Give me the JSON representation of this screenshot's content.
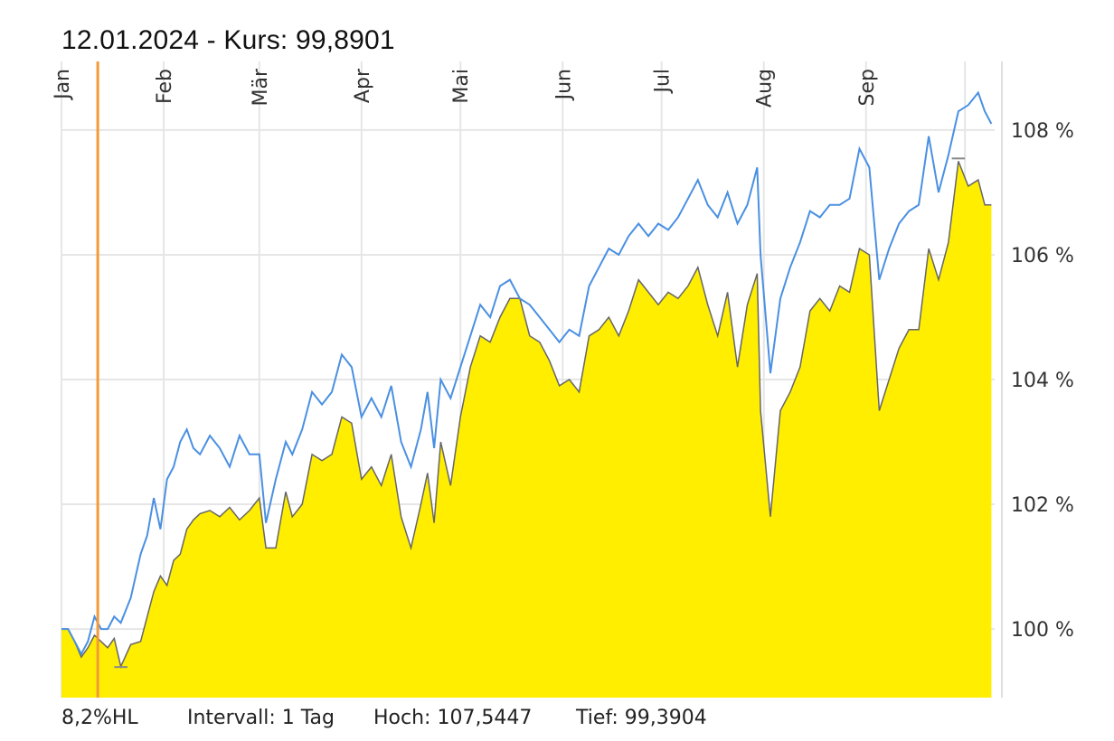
{
  "header": {
    "title": "12.01.2024  -  Kurs: 99,8901"
  },
  "footer": {
    "label": "8,2%HL",
    "interval": "Intervall: 1 Tag",
    "high": "Hoch: 107,5447",
    "low": "Tief: 99,3904"
  },
  "colors": {
    "area_fill": "#ffee00",
    "area_line": "#666666",
    "compare_line": "#4a90e2",
    "marker": "#f39a3a",
    "grid": "#e6e6e6"
  },
  "chart_data": {
    "type": "area",
    "x_ticks": [
      "Jan",
      "Feb",
      "Mär",
      "Apr",
      "Mai",
      "Jun",
      "Jul",
      "Aug",
      "Sep"
    ],
    "y_ticks": [
      "100 %",
      "102 %",
      "104 %",
      "106 %",
      "108 %"
    ],
    "ylim": [
      98.9,
      109.1
    ],
    "xlim": [
      "2024-01-01",
      "2024-10-10"
    ],
    "grid": true,
    "marker_date": "2024-01-12",
    "high_value": 107.5447,
    "low_value": 99.3904,
    "series": [
      {
        "style": "area",
        "points": [
          [
            "2024-01-01",
            100
          ],
          [
            "2024-01-03",
            100.0
          ],
          [
            "2024-01-05",
            99.8
          ],
          [
            "2024-01-07",
            99.55
          ],
          [
            "2024-01-09",
            99.7
          ],
          [
            "2024-01-11",
            99.9
          ],
          [
            "2024-01-13",
            99.8
          ],
          [
            "2024-01-15",
            99.7
          ],
          [
            "2024-01-17",
            99.85
          ],
          [
            "2024-01-19",
            99.4
          ],
          [
            "2024-01-22",
            99.75
          ],
          [
            "2024-01-25",
            99.8
          ],
          [
            "2024-01-27",
            100.2
          ],
          [
            "2024-01-29",
            100.6
          ],
          [
            "2024-01-31",
            100.85
          ],
          [
            "2024-02-02",
            100.7
          ],
          [
            "2024-02-04",
            101.1
          ],
          [
            "2024-02-06",
            101.2
          ],
          [
            "2024-02-08",
            101.6
          ],
          [
            "2024-02-10",
            101.75
          ],
          [
            "2024-02-12",
            101.85
          ],
          [
            "2024-02-15",
            101.9
          ],
          [
            "2024-02-18",
            101.8
          ],
          [
            "2024-02-21",
            101.95
          ],
          [
            "2024-02-24",
            101.75
          ],
          [
            "2024-02-27",
            101.9
          ],
          [
            "2024-03-01",
            102.1
          ],
          [
            "2024-03-03",
            101.3
          ],
          [
            "2024-03-06",
            101.3
          ],
          [
            "2024-03-09",
            102.2
          ],
          [
            "2024-03-11",
            101.8
          ],
          [
            "2024-03-14",
            102.0
          ],
          [
            "2024-03-17",
            102.8
          ],
          [
            "2024-03-20",
            102.7
          ],
          [
            "2024-03-23",
            102.8
          ],
          [
            "2024-03-26",
            103.4
          ],
          [
            "2024-03-29",
            103.3
          ],
          [
            "2024-04-01",
            102.4
          ],
          [
            "2024-04-04",
            102.6
          ],
          [
            "2024-04-07",
            102.3
          ],
          [
            "2024-04-10",
            102.8
          ],
          [
            "2024-04-13",
            101.8
          ],
          [
            "2024-04-16",
            101.3
          ],
          [
            "2024-04-19",
            102.0
          ],
          [
            "2024-04-21",
            102.5
          ],
          [
            "2024-04-23",
            101.7
          ],
          [
            "2024-04-25",
            103.0
          ],
          [
            "2024-04-28",
            102.3
          ],
          [
            "2024-05-01",
            103.4
          ],
          [
            "2024-05-04",
            104.2
          ],
          [
            "2024-05-07",
            104.7
          ],
          [
            "2024-05-10",
            104.6
          ],
          [
            "2024-05-13",
            105.0
          ],
          [
            "2024-05-16",
            105.3
          ],
          [
            "2024-05-19",
            105.3
          ],
          [
            "2024-05-22",
            104.7
          ],
          [
            "2024-05-25",
            104.6
          ],
          [
            "2024-05-28",
            104.3
          ],
          [
            "2024-05-31",
            103.9
          ],
          [
            "2024-06-03",
            104.0
          ],
          [
            "2024-06-06",
            103.8
          ],
          [
            "2024-06-09",
            104.7
          ],
          [
            "2024-06-12",
            104.8
          ],
          [
            "2024-06-15",
            105.0
          ],
          [
            "2024-06-18",
            104.7
          ],
          [
            "2024-06-21",
            105.1
          ],
          [
            "2024-06-24",
            105.6
          ],
          [
            "2024-06-27",
            105.4
          ],
          [
            "2024-06-30",
            105.2
          ],
          [
            "2024-07-03",
            105.4
          ],
          [
            "2024-07-06",
            105.3
          ],
          [
            "2024-07-09",
            105.5
          ],
          [
            "2024-07-12",
            105.8
          ],
          [
            "2024-07-15",
            105.2
          ],
          [
            "2024-07-18",
            104.7
          ],
          [
            "2024-07-21",
            105.4
          ],
          [
            "2024-07-24",
            104.2
          ],
          [
            "2024-07-27",
            105.2
          ],
          [
            "2024-07-30",
            105.7
          ],
          [
            "2024-07-31",
            103.5
          ],
          [
            "2024-08-03",
            101.8
          ],
          [
            "2024-08-06",
            103.5
          ],
          [
            "2024-08-09",
            103.8
          ],
          [
            "2024-08-12",
            104.2
          ],
          [
            "2024-08-15",
            105.1
          ],
          [
            "2024-08-18",
            105.3
          ],
          [
            "2024-08-21",
            105.1
          ],
          [
            "2024-08-24",
            105.5
          ],
          [
            "2024-08-27",
            105.4
          ],
          [
            "2024-08-30",
            106.1
          ],
          [
            "2024-09-02",
            106.0
          ],
          [
            "2024-09-05",
            103.5
          ],
          [
            "2024-09-08",
            104.0
          ],
          [
            "2024-09-11",
            104.5
          ],
          [
            "2024-09-14",
            104.8
          ],
          [
            "2024-09-17",
            104.8
          ],
          [
            "2024-09-20",
            106.1
          ],
          [
            "2024-09-23",
            105.6
          ],
          [
            "2024-09-26",
            106.2
          ],
          [
            "2024-09-29",
            107.5
          ],
          [
            "2024-10-02",
            107.1
          ],
          [
            "2024-10-05",
            107.2
          ],
          [
            "2024-10-07",
            106.8
          ],
          [
            "2024-10-09",
            106.8
          ]
        ]
      },
      {
        "style": "line",
        "points": [
          [
            "2024-01-01",
            100
          ],
          [
            "2024-01-03",
            100.0
          ],
          [
            "2024-01-05",
            99.8
          ],
          [
            "2024-01-07",
            99.6
          ],
          [
            "2024-01-09",
            99.8
          ],
          [
            "2024-01-11",
            100.2
          ],
          [
            "2024-01-13",
            100.0
          ],
          [
            "2024-01-15",
            100.0
          ],
          [
            "2024-01-17",
            100.2
          ],
          [
            "2024-01-19",
            100.1
          ],
          [
            "2024-01-22",
            100.5
          ],
          [
            "2024-01-25",
            101.2
          ],
          [
            "2024-01-27",
            101.5
          ],
          [
            "2024-01-29",
            102.1
          ],
          [
            "2024-01-31",
            101.6
          ],
          [
            "2024-02-02",
            102.4
          ],
          [
            "2024-02-04",
            102.6
          ],
          [
            "2024-02-06",
            103.0
          ],
          [
            "2024-02-08",
            103.2
          ],
          [
            "2024-02-10",
            102.9
          ],
          [
            "2024-02-12",
            102.8
          ],
          [
            "2024-02-15",
            103.1
          ],
          [
            "2024-02-18",
            102.9
          ],
          [
            "2024-02-21",
            102.6
          ],
          [
            "2024-02-24",
            103.1
          ],
          [
            "2024-02-27",
            102.8
          ],
          [
            "2024-03-01",
            102.8
          ],
          [
            "2024-03-03",
            101.7
          ],
          [
            "2024-03-06",
            102.4
          ],
          [
            "2024-03-09",
            103.0
          ],
          [
            "2024-03-11",
            102.8
          ],
          [
            "2024-03-14",
            103.2
          ],
          [
            "2024-03-17",
            103.8
          ],
          [
            "2024-03-20",
            103.6
          ],
          [
            "2024-03-23",
            103.8
          ],
          [
            "2024-03-26",
            104.4
          ],
          [
            "2024-03-29",
            104.2
          ],
          [
            "2024-04-01",
            103.4
          ],
          [
            "2024-04-04",
            103.7
          ],
          [
            "2024-04-07",
            103.4
          ],
          [
            "2024-04-10",
            103.9
          ],
          [
            "2024-04-13",
            103.0
          ],
          [
            "2024-04-16",
            102.6
          ],
          [
            "2024-04-19",
            103.2
          ],
          [
            "2024-04-21",
            103.8
          ],
          [
            "2024-04-23",
            102.9
          ],
          [
            "2024-04-25",
            104.0
          ],
          [
            "2024-04-28",
            103.7
          ],
          [
            "2024-05-01",
            104.2
          ],
          [
            "2024-05-04",
            104.7
          ],
          [
            "2024-05-07",
            105.2
          ],
          [
            "2024-05-10",
            105.0
          ],
          [
            "2024-05-13",
            105.5
          ],
          [
            "2024-05-16",
            105.6
          ],
          [
            "2024-05-19",
            105.3
          ],
          [
            "2024-05-22",
            105.2
          ],
          [
            "2024-05-25",
            105.0
          ],
          [
            "2024-05-28",
            104.8
          ],
          [
            "2024-05-31",
            104.6
          ],
          [
            "2024-06-03",
            104.8
          ],
          [
            "2024-06-06",
            104.7
          ],
          [
            "2024-06-09",
            105.5
          ],
          [
            "2024-06-12",
            105.8
          ],
          [
            "2024-06-15",
            106.1
          ],
          [
            "2024-06-18",
            106.0
          ],
          [
            "2024-06-21",
            106.3
          ],
          [
            "2024-06-24",
            106.5
          ],
          [
            "2024-06-27",
            106.3
          ],
          [
            "2024-06-30",
            106.5
          ],
          [
            "2024-07-03",
            106.4
          ],
          [
            "2024-07-06",
            106.6
          ],
          [
            "2024-07-09",
            106.9
          ],
          [
            "2024-07-12",
            107.2
          ],
          [
            "2024-07-15",
            106.8
          ],
          [
            "2024-07-18",
            106.6
          ],
          [
            "2024-07-21",
            107.0
          ],
          [
            "2024-07-24",
            106.5
          ],
          [
            "2024-07-27",
            106.8
          ],
          [
            "2024-07-30",
            107.4
          ],
          [
            "2024-07-31",
            106.0
          ],
          [
            "2024-08-03",
            104.1
          ],
          [
            "2024-08-06",
            105.3
          ],
          [
            "2024-08-09",
            105.8
          ],
          [
            "2024-08-12",
            106.2
          ],
          [
            "2024-08-15",
            106.7
          ],
          [
            "2024-08-18",
            106.6
          ],
          [
            "2024-08-21",
            106.8
          ],
          [
            "2024-08-24",
            106.8
          ],
          [
            "2024-08-27",
            106.9
          ],
          [
            "2024-08-30",
            107.7
          ],
          [
            "2024-09-02",
            107.4
          ],
          [
            "2024-09-05",
            105.6
          ],
          [
            "2024-09-08",
            106.1
          ],
          [
            "2024-09-11",
            106.5
          ],
          [
            "2024-09-14",
            106.7
          ],
          [
            "2024-09-17",
            106.8
          ],
          [
            "2024-09-20",
            107.9
          ],
          [
            "2024-09-23",
            107.0
          ],
          [
            "2024-09-26",
            107.6
          ],
          [
            "2024-09-29",
            108.3
          ],
          [
            "2024-10-02",
            108.4
          ],
          [
            "2024-10-05",
            108.6
          ],
          [
            "2024-10-07",
            108.3
          ],
          [
            "2024-10-09",
            108.1
          ]
        ]
      }
    ]
  }
}
